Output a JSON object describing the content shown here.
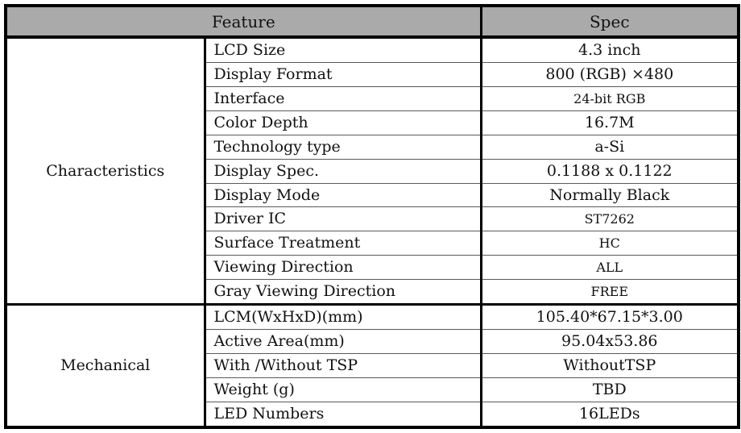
{
  "header": {
    "feature_label": "Feature",
    "spec_label": "Spec"
  },
  "colors": {
    "header_bg": "#aaaaaa",
    "thick_border": "#000000",
    "thin_border": "#5a5a5a"
  },
  "sections": [
    {
      "label": "Characteristics",
      "rows": [
        {
          "feature": "LCD Size",
          "spec": "4.3 inch"
        },
        {
          "feature": "Display Format",
          "spec": "800 (RGB) ×480"
        },
        {
          "feature": "Interface",
          "spec": "24-bit RGB"
        },
        {
          "feature": "Color Depth",
          "spec": "16.7M"
        },
        {
          "feature": "Technology type",
          "spec": "a-Si"
        },
        {
          "feature": "Display Spec.",
          "spec": "0.1188 x 0.1122"
        },
        {
          "feature": "Display Mode",
          "spec": "Normally Black"
        },
        {
          "feature": "Driver IC",
          "spec": "ST7262"
        },
        {
          "feature": "Surface Treatment",
          "spec": "HC"
        },
        {
          "feature": "Viewing Direction",
          "spec": "ALL"
        },
        {
          "feature": "Gray Viewing Direction",
          "spec": "FREE"
        }
      ]
    },
    {
      "label": "Mechanical",
      "rows": [
        {
          "feature": "LCM(WxHxD)(mm)",
          "spec": "105.40*67.15*3.00"
        },
        {
          "feature": "Active Area(mm)",
          "spec": "95.04x53.86"
        },
        {
          "feature": "With /Without TSP",
          "spec": "WithoutTSP"
        },
        {
          "feature": "Weight (g)",
          "spec": "TBD"
        },
        {
          "feature": "LED Numbers",
          "spec": "16LEDs"
        }
      ]
    }
  ]
}
